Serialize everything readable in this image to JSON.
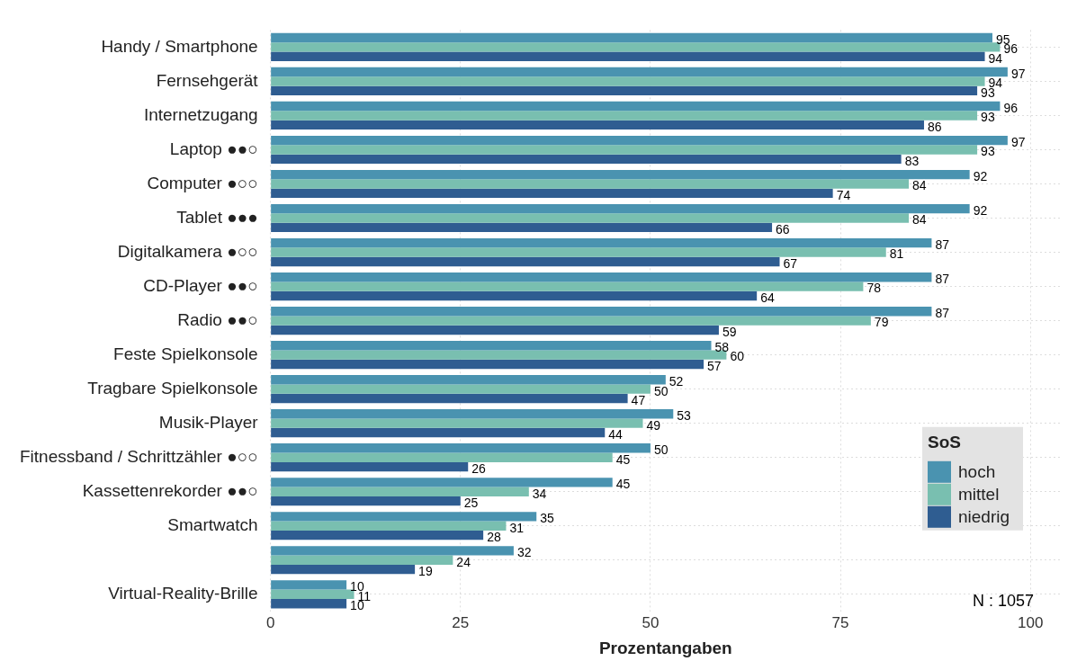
{
  "chart_data": {
    "type": "bar",
    "orientation": "horizontal",
    "xlabel": "Prozentangaben",
    "legend_title": "SoS",
    "legend": "bottom right",
    "grid": true,
    "data_labels": true,
    "categories": [
      "Handy / Smartphone",
      "Fernsehgerät",
      "Internetzugang",
      "Laptop ●●○",
      "Computer ●○○",
      "Tablet ●●●",
      "Digitalkamera ●○○",
      "CD-Player ●●○",
      "Radio ●●○",
      "Feste Spielkonsole",
      "Tragbare Spielkonsole",
      "Musik-Player",
      "Fitnessband / Schrittzähler ●○○",
      "Kassettenrekorder ●●○",
      "Smartwatch",
      null,
      "Virtual-Reality-Brille"
    ],
    "series": [
      {
        "name": "hoch",
        "color": "#4a93b0",
        "values": [
          95,
          97,
          96,
          97,
          92,
          92,
          87,
          87,
          87,
          58,
          52,
          53,
          50,
          45,
          35,
          32,
          10
        ]
      },
      {
        "name": "mittel",
        "color": "#79bfb0",
        "values": [
          96,
          94,
          93,
          93,
          84,
          84,
          81,
          78,
          79,
          60,
          50,
          49,
          45,
          34,
          31,
          24,
          11
        ]
      },
      {
        "name": "niedrig",
        "color": "#2f5d91",
        "values": [
          94,
          93,
          86,
          83,
          74,
          66,
          67,
          64,
          59,
          57,
          47,
          44,
          26,
          25,
          28,
          19,
          10
        ]
      }
    ],
    "xlim": [
      0,
      104
    ],
    "xticks": [
      0,
      25,
      50,
      75,
      100
    ],
    "annotations": [
      "N : 1057"
    ]
  }
}
